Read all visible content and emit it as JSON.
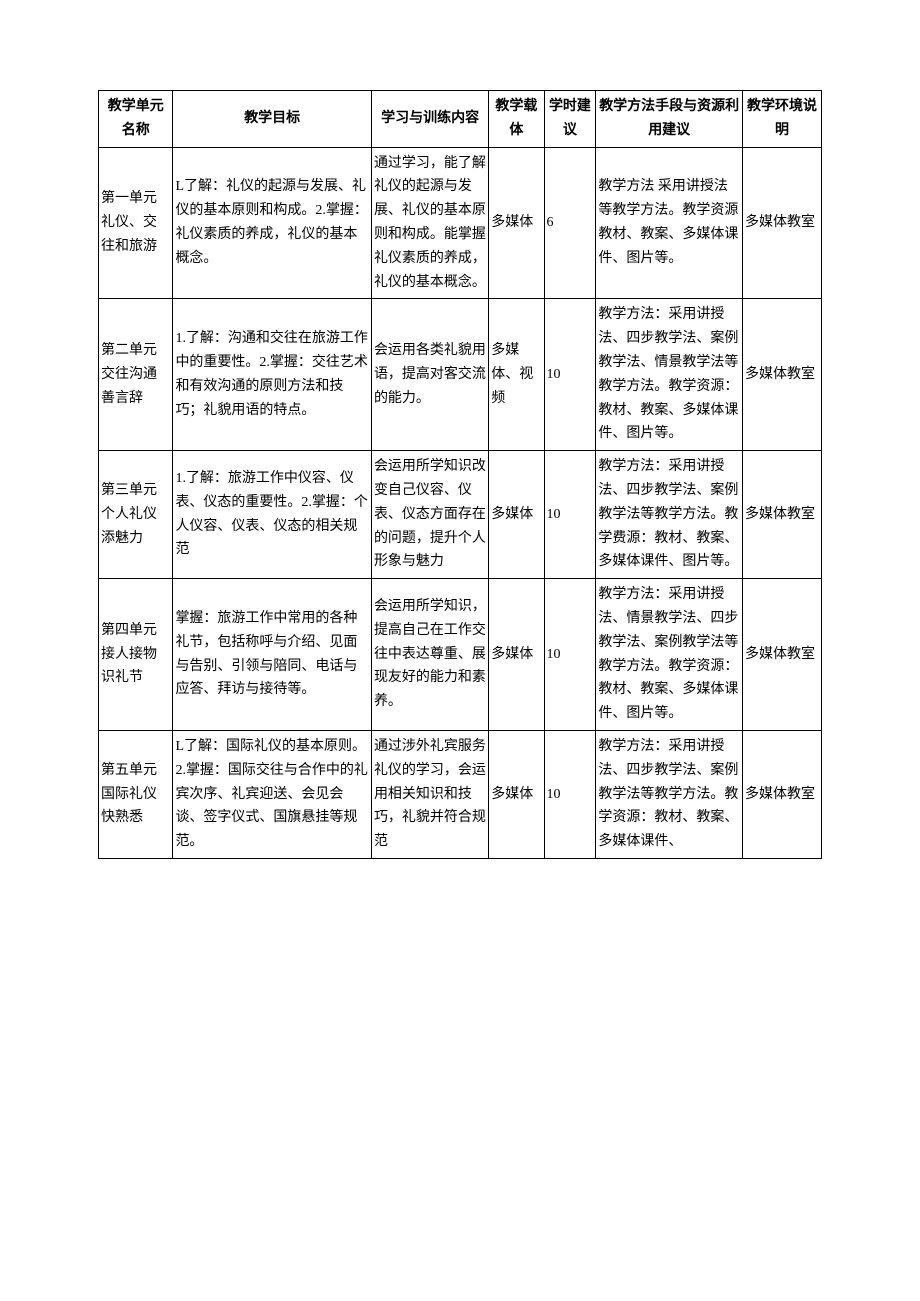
{
  "headers": {
    "unit": "教学单元名称",
    "goal": "教学目标",
    "content": "学习与训练内容",
    "carrier": "教学载体",
    "hours": "学时建议",
    "method": "教学方法手段与资源利用建议",
    "env": "教学环境说明"
  },
  "rows": [
    {
      "unit": "第一单元礼仪、交往和旅游",
      "goal": "L了解：礼仪的起源与发展、礼仪的基本原则和构成。2.掌握：礼仪素质的养成，礼仪的基本概念。",
      "content": "通过学习，能了解礼仪的起源与发展、礼仪的基本原则和构成。能掌握礼仪素质的养成，礼仪的基本概念。",
      "carrier": "多媒体",
      "hours": "6",
      "method": "教学方法 采用讲授法等教学方法。教学资源教材、教案、多媒体课件、图片等。",
      "env": "多媒体教室"
    },
    {
      "unit": "第二单元交往沟通善言辞",
      "goal": "1.了解：沟通和交往在旅游工作中的重要性。2.掌握：交往艺术和有效沟通的原则方法和技巧；礼貌用语的特点。",
      "content": "会运用各类礼貌用语，提高对客交流的能力。",
      "carrier": "多媒体、视频",
      "hours": "10",
      "method": "教学方法：采用讲授法、四步教学法、案例教学法、情景教学法等教学方法。教学资源：教材、教案、多媒体课件、图片等。",
      "env": "多媒体教室"
    },
    {
      "unit": "第三单元个人礼仪添魅力",
      "goal": "1.了解：旅游工作中仪容、仪表、仪态的重要性。2.掌握：个人仪容、仪表、仪态的相关规范",
      "content": "会运用所学知识改变自己仪容、仪表、仪态方面存在的问题，提升个人形象与魅力",
      "carrier": "多媒体",
      "hours": "10",
      "method": "教学方法：采用讲授法、四步教学法、案例教学法等教学方法。教学费源：教材、教案、多媒体课件、图片等。",
      "env": "多媒体教室"
    },
    {
      "unit": "第四单元接人接物识礼节",
      "goal": "掌握：旅游工作中常用的各种礼节，包括称呼与介绍、见面与告别、引领与陪同、电话与应答、拜访与接待等。",
      "content": "会运用所学知识，提高自己在工作交往中表达尊重、展现友好的能力和素养。",
      "carrier": "多媒体",
      "hours": "10",
      "method": "教学方法：采用讲授法、情景教学法、四步教学法、案例教学法等教学方法。教学资源：教材、教案、多媒体课件、图片等。",
      "env": "多媒体教室",
      "env_split": true
    },
    {
      "unit": "第五单元国际礼仪快熟悉",
      "goal": "L了解：国际礼仪的基本原则。2.掌握：国际交往与合作中的礼宾次序、礼宾迎送、会见会谈、签字仪式、国旗悬挂等规范。",
      "content": "通过涉外礼宾服务礼仪的学习，会运用相关知识和技巧，礼貌并符合规范",
      "carrier": "多媒体",
      "hours": "10",
      "method": "教学方法：采用讲授法、四步教学法、案例教学法等教学方法。教学资源：教材、教案、多媒体课件、",
      "env": "多媒体教室"
    }
  ]
}
